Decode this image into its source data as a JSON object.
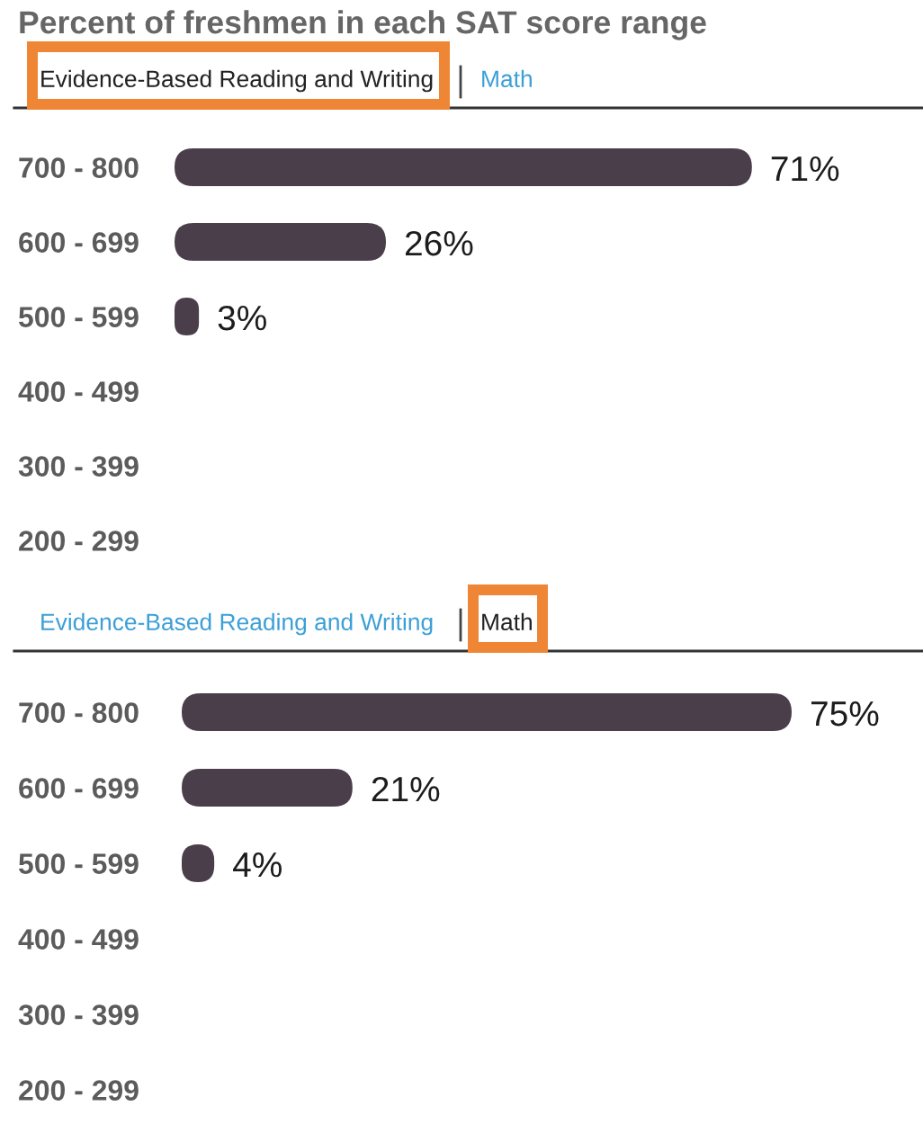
{
  "chart_data": [
    {
      "type": "bar",
      "orientation": "horizontal",
      "title": "Percent of freshmen in each SAT score range",
      "annotations": [
        "Evidence-Based Reading and Writing",
        "Math"
      ],
      "categories": [
        "700 - 800",
        "600 - 699",
        "500 - 599",
        "400 - 499",
        "300 - 399",
        "200 - 299"
      ],
      "values": [
        71,
        26,
        3,
        null,
        null,
        null
      ],
      "value_labels": [
        "71%",
        "26%",
        "3%",
        null,
        null,
        null
      ],
      "color": "#4a3e4a"
    },
    {
      "type": "bar",
      "orientation": "horizontal",
      "annotations": [
        "Evidence-Based Reading and Writing",
        "Math"
      ],
      "categories": [
        "700 - 800",
        "600 - 699",
        "500 - 599",
        "400 - 499",
        "300 - 399",
        "200 - 299"
      ],
      "values": [
        75,
        21,
        4,
        null,
        null,
        null
      ],
      "value_labels": [
        "75%",
        "21%",
        "4%",
        null,
        null,
        null
      ],
      "color": "#4a3e4a"
    }
  ]
}
